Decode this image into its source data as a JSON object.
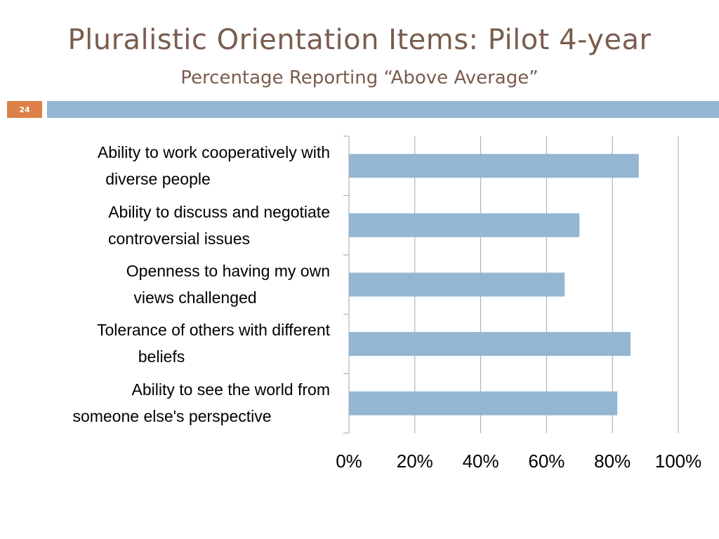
{
  "slide": {
    "title": "Pluralistic Orientation Items: Pilot 4-year",
    "subtitle": "Percentage Reporting “Above Average”",
    "page_number": "24",
    "colors": {
      "title": "#7a5c4e",
      "badge": "#dd8047",
      "band": "#94b6d2"
    }
  },
  "chart_data": {
    "type": "bar",
    "orientation": "horizontal",
    "categories": [
      [
        "Ability to work cooperatively with",
        "diverse people"
      ],
      [
        "Ability to discuss and negotiate",
        "controversial issues"
      ],
      [
        "Openness to having my own",
        "views challenged"
      ],
      [
        "Tolerance of others with different",
        "beliefs"
      ],
      [
        "Ability to see the world from",
        "someone else's perspective"
      ]
    ],
    "values": [
      0.88,
      0.7,
      0.655,
      0.855,
      0.815
    ],
    "xlim": [
      0,
      1
    ],
    "ticks": [
      "0%",
      "20%",
      "40%",
      "60%",
      "80%",
      "100%"
    ],
    "grid": true,
    "legend": "none",
    "bar_color": "#94b6d2"
  }
}
